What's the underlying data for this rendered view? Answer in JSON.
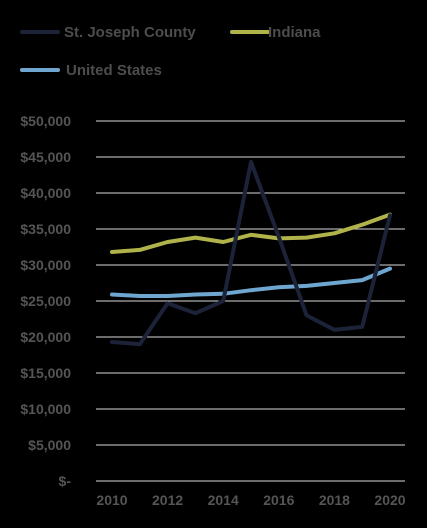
{
  "chart_data": {
    "type": "line",
    "title": "",
    "xlabel": "",
    "ylabel": "",
    "x": [
      2010,
      2011,
      2012,
      2013,
      2014,
      2015,
      2016,
      2017,
      2018,
      2019,
      2020
    ],
    "x_tick_labels": [
      "2010",
      "2012",
      "2014",
      "2016",
      "2018",
      "2020"
    ],
    "y_tick_labels": [
      "$-",
      "$5,000",
      "$10,000",
      "$15,000",
      "$20,000",
      "$25,000",
      "$30,000",
      "$35,000",
      "$40,000",
      "$45,000",
      "$50,000"
    ],
    "ylim": [
      0,
      50000
    ],
    "xlim": [
      2010,
      2020
    ],
    "grid": "horizontal",
    "legend_placement": "top-left",
    "series": [
      {
        "name": "St. Joseph County",
        "color": "#1c2238",
        "values": [
          19300,
          19000,
          24700,
          23300,
          25000,
          44300,
          33900,
          23000,
          21000,
          21400,
          36900
        ]
      },
      {
        "name": "Indiana",
        "color": "#b0b34a",
        "values": [
          31800,
          32100,
          33200,
          33800,
          33200,
          34200,
          33700,
          33800,
          34400,
          35600,
          37000
        ]
      },
      {
        "name": "United States",
        "color": "#6fa6d0",
        "values": [
          25900,
          25700,
          25700,
          25900,
          26000,
          26500,
          26900,
          27100,
          27500,
          27900,
          29500
        ]
      }
    ]
  }
}
